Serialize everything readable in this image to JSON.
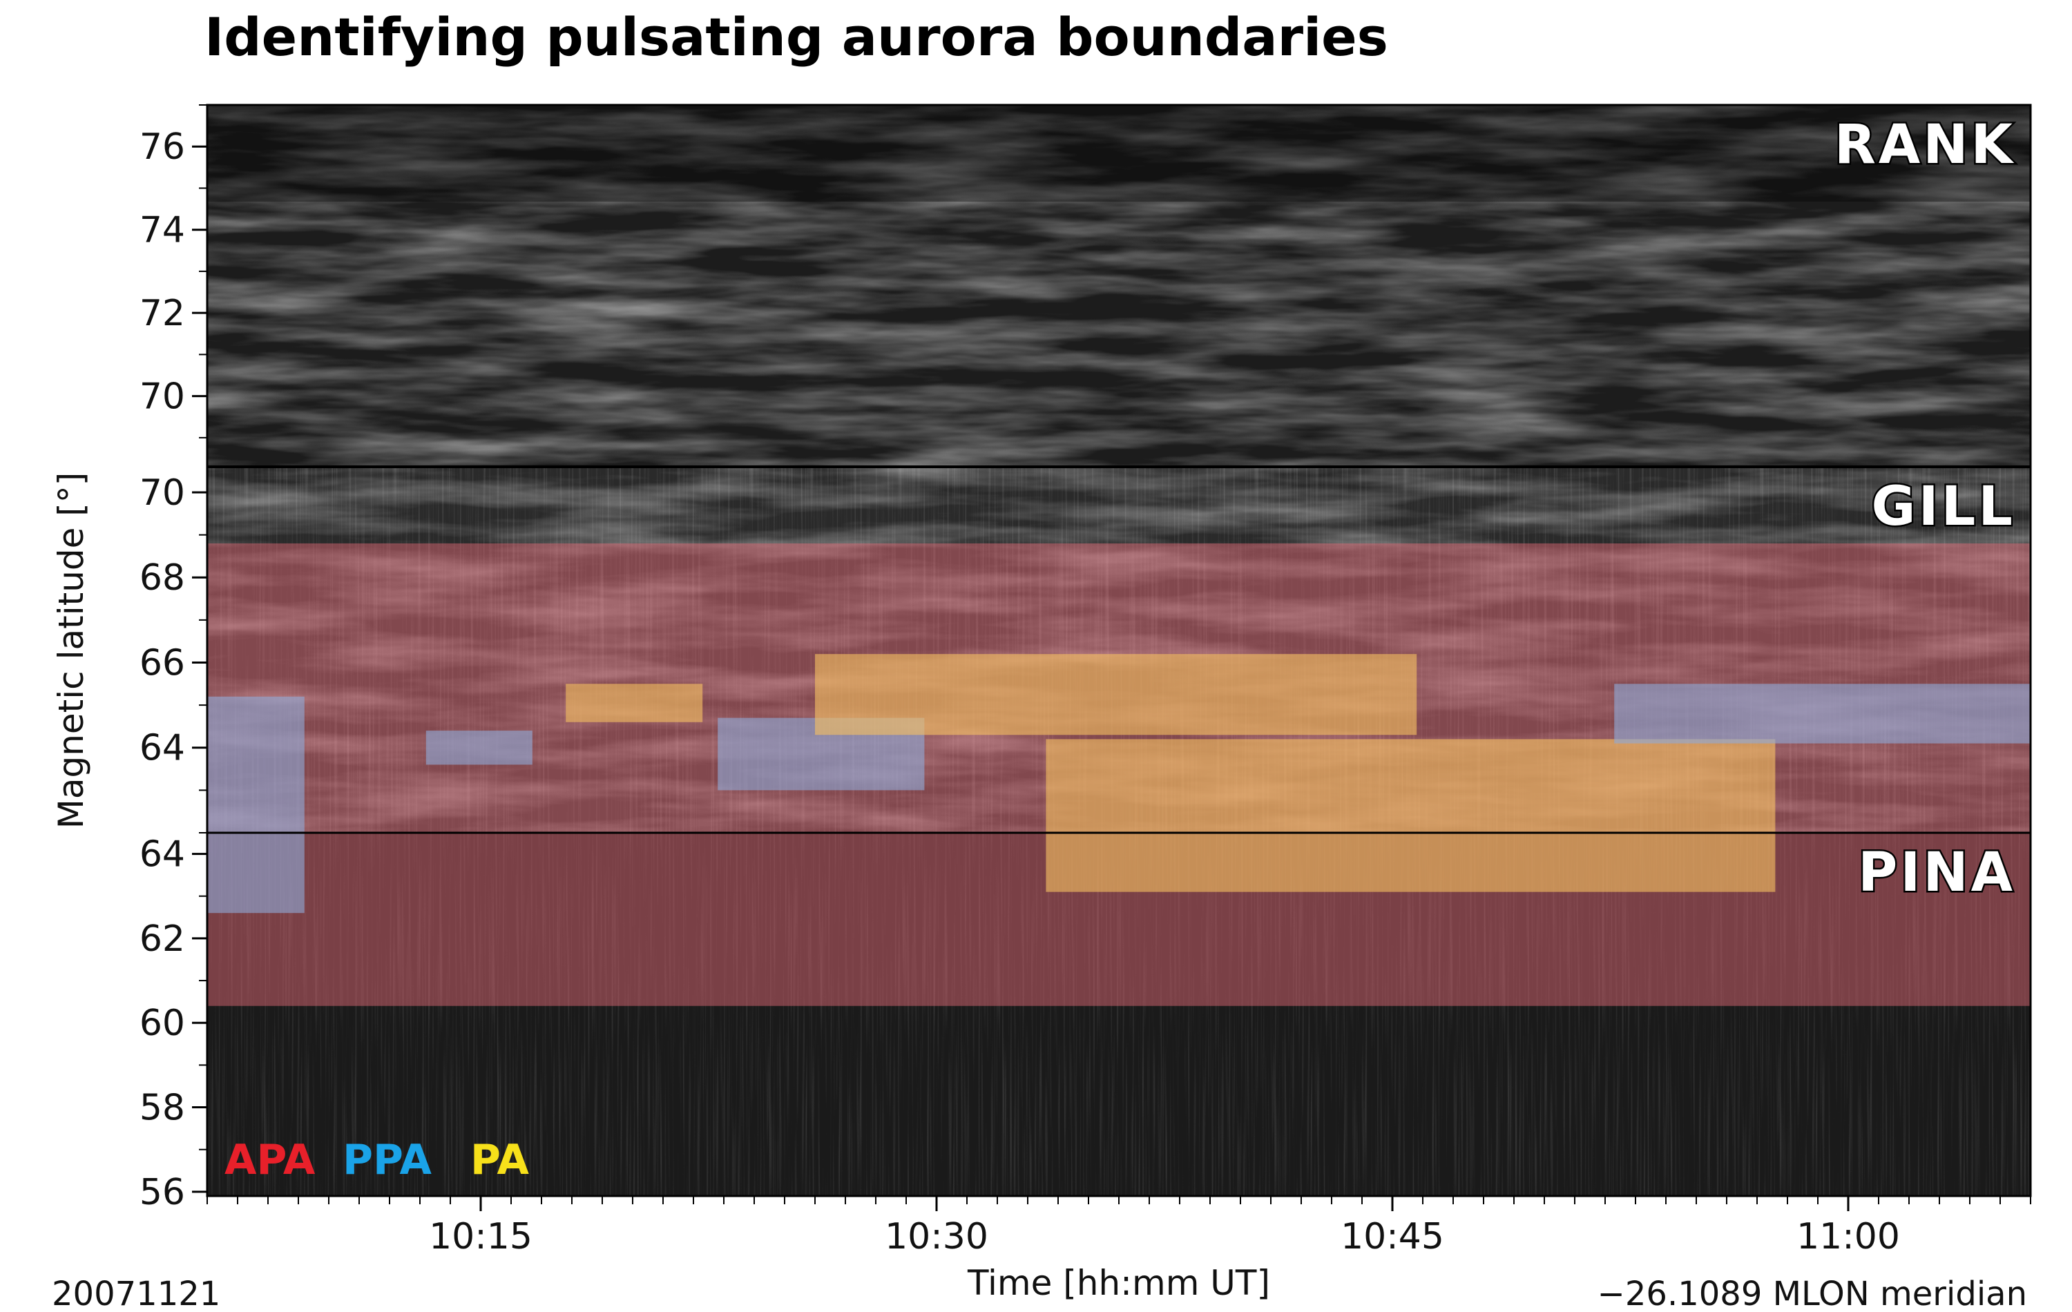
{
  "chart_data": {
    "type": "heatmap",
    "title": "Identifying pulsating aurora boundaries",
    "xlabel": "Time [hh:mm UT]",
    "ylabel": "Magnetic latitude [°]",
    "date_label": "20071121",
    "meridian_label": "−26.1089 MLON meridian",
    "x_ticks": [
      "10:15",
      "10:30",
      "10:45",
      "11:00"
    ],
    "x_range_minutes": [
      606,
      666
    ],
    "x_tick_minutes": [
      615,
      630,
      645,
      660
    ],
    "panels": [
      {
        "station": "RANK",
        "lat_range": [
          68.3,
          77.0
        ],
        "ticks": [
          "70",
          "72",
          "74",
          "76"
        ],
        "tick_values": [
          70,
          72,
          74,
          76
        ],
        "regions": []
      },
      {
        "station": "GILL",
        "lat_range": [
          62.0,
          70.6
        ],
        "ticks": [
          "64",
          "66",
          "68",
          "70"
        ],
        "tick_values": [
          64,
          66,
          68,
          70
        ],
        "regions": [
          {
            "type": "APA",
            "t0": 606,
            "t1": 666,
            "lat0": 62.0,
            "lat1": 68.8
          },
          {
            "type": "PPA",
            "t0": 606,
            "t1": 609.2,
            "lat0": 62.0,
            "lat1": 65.2
          },
          {
            "type": "PPA",
            "t0": 613.2,
            "t1": 616.7,
            "lat0": 63.6,
            "lat1": 64.4
          },
          {
            "type": "PA",
            "t0": 617.8,
            "t1": 622.3,
            "lat0": 64.6,
            "lat1": 65.5
          },
          {
            "type": "PPA",
            "t0": 622.8,
            "t1": 629.6,
            "lat0": 63.0,
            "lat1": 64.7
          },
          {
            "type": "PA",
            "t0": 626.0,
            "t1": 645.8,
            "lat0": 64.3,
            "lat1": 66.2
          },
          {
            "type": "PA",
            "t0": 633.6,
            "t1": 657.6,
            "lat0": 62.0,
            "lat1": 64.2
          },
          {
            "type": "PPA",
            "t0": 652.3,
            "t1": 666,
            "lat0": 64.1,
            "lat1": 65.5
          }
        ]
      },
      {
        "station": "PINA",
        "lat_range": [
          55.9,
          64.5
        ],
        "ticks": [
          "56",
          "58",
          "60",
          "62",
          "64"
        ],
        "tick_values": [
          56,
          58,
          60,
          62,
          64
        ],
        "regions": [
          {
            "type": "APA",
            "t0": 606,
            "t1": 666,
            "lat0": 60.4,
            "lat1": 64.5
          },
          {
            "type": "PPA",
            "t0": 606,
            "t1": 609.2,
            "lat0": 62.6,
            "lat1": 64.5
          },
          {
            "type": "PA",
            "t0": 633.6,
            "t1": 657.6,
            "lat0": 63.1,
            "lat1": 64.5
          }
        ]
      }
    ],
    "legend": [
      {
        "label": "APA",
        "color": "#e8202a"
      },
      {
        "label": "PPA",
        "color": "#1aa3e8"
      },
      {
        "label": "PA",
        "color": "#f7e01a"
      }
    ],
    "overlay_colors": {
      "APA": "#e36a78",
      "PPA": "#8fa9d6",
      "PA": "#f5c063"
    }
  }
}
